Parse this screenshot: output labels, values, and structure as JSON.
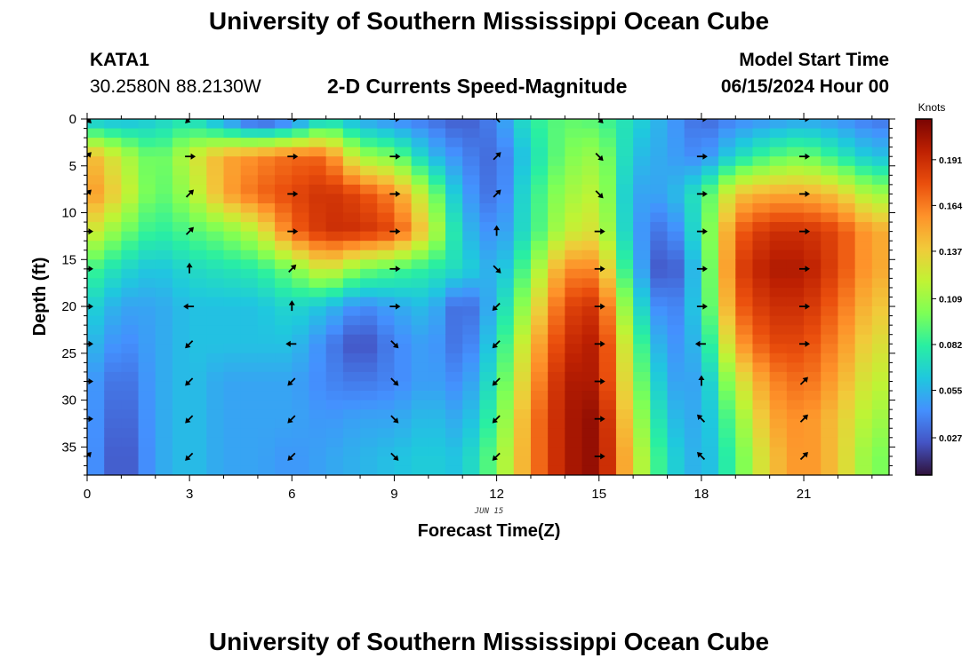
{
  "header": {
    "title": "University of Southern Mississippi Ocean Cube",
    "station_id": "KATA1",
    "station_coords": "30.2580N  88.2130W",
    "plot_title": "2-D Currents Speed-Magnitude",
    "model_start_label": "Model Start Time",
    "model_start_value": "06/15/2024 Hour 00"
  },
  "footer": {
    "title": "University of Southern Mississippi Ocean Cube"
  },
  "chart_data": {
    "type": "heatmap",
    "title": "2-D Currents Speed-Magnitude",
    "xlabel": "Forecast Time(Z)",
    "ylabel": "Depth (ft)",
    "x_date_label": "JUN 15",
    "xlim": [
      0,
      23.5
    ],
    "ylim": [
      0,
      38
    ],
    "y_inverted": true,
    "x_ticks": [
      0,
      3,
      6,
      9,
      12,
      15,
      18,
      21
    ],
    "y_ticks": [
      0,
      5,
      10,
      15,
      20,
      25,
      30,
      35
    ],
    "colorbar": {
      "label": "Knots",
      "ticks": [
        0.027,
        0.055,
        0.082,
        0.109,
        0.137,
        0.164,
        0.191
      ],
      "range": [
        0.005,
        0.215
      ],
      "colormap": [
        "#30123b",
        "#4454c4",
        "#4490fe",
        "#1fc8de",
        "#29efa2",
        "#7dff56",
        "#c1f334",
        "#f1ca3a",
        "#fe922a",
        "#ea4f0d",
        "#be2102",
        "#7a0403"
      ]
    },
    "grid": false,
    "legend": "right colorbar",
    "times": [
      0,
      1,
      2,
      3,
      4,
      5,
      6,
      7,
      8,
      9,
      10,
      11,
      12,
      13,
      14,
      15,
      16,
      17,
      18,
      19,
      20,
      21,
      22,
      23
    ],
    "depths": [
      0,
      4,
      8,
      12,
      16,
      20,
      24,
      28,
      32,
      36
    ],
    "speed": [
      [
        0.06,
        0.055,
        0.065,
        0.075,
        0.045,
        0.015,
        0.03,
        0.07,
        0.05,
        0.04,
        0.035,
        0.025,
        0.04,
        0.08,
        0.095,
        0.09,
        0.07,
        0.05,
        0.03,
        0.04,
        0.045,
        0.05,
        0.045,
        0.035
      ],
      [
        0.15,
        0.12,
        0.09,
        0.12,
        0.15,
        0.16,
        0.17,
        0.17,
        0.11,
        0.1,
        0.06,
        0.04,
        0.03,
        0.07,
        0.1,
        0.11,
        0.06,
        0.05,
        0.04,
        0.07,
        0.09,
        0.1,
        0.08,
        0.06
      ],
      [
        0.16,
        0.13,
        0.09,
        0.11,
        0.15,
        0.17,
        0.18,
        0.19,
        0.18,
        0.16,
        0.11,
        0.05,
        0.03,
        0.08,
        0.11,
        0.12,
        0.05,
        0.05,
        0.08,
        0.14,
        0.15,
        0.15,
        0.14,
        0.11
      ],
      [
        0.13,
        0.1,
        0.08,
        0.09,
        0.1,
        0.12,
        0.17,
        0.19,
        0.19,
        0.18,
        0.13,
        0.06,
        0.04,
        0.08,
        0.12,
        0.13,
        0.05,
        0.03,
        0.08,
        0.17,
        0.19,
        0.19,
        0.18,
        0.15
      ],
      [
        0.09,
        0.07,
        0.06,
        0.07,
        0.075,
        0.08,
        0.1,
        0.13,
        0.1,
        0.09,
        0.08,
        0.07,
        0.05,
        0.1,
        0.16,
        0.16,
        0.06,
        0.015,
        0.07,
        0.18,
        0.2,
        0.2,
        0.18,
        0.15
      ],
      [
        0.07,
        0.05,
        0.05,
        0.06,
        0.06,
        0.06,
        0.07,
        0.06,
        0.04,
        0.05,
        0.06,
        0.025,
        0.06,
        0.12,
        0.18,
        0.19,
        0.08,
        0.03,
        0.07,
        0.17,
        0.19,
        0.19,
        0.17,
        0.14
      ],
      [
        0.06,
        0.04,
        0.05,
        0.06,
        0.06,
        0.06,
        0.06,
        0.04,
        0.02,
        0.04,
        0.05,
        0.03,
        0.07,
        0.14,
        0.19,
        0.2,
        0.1,
        0.04,
        0.06,
        0.15,
        0.18,
        0.18,
        0.16,
        0.13
      ],
      [
        0.05,
        0.03,
        0.05,
        0.06,
        0.05,
        0.05,
        0.05,
        0.04,
        0.035,
        0.04,
        0.05,
        0.04,
        0.08,
        0.15,
        0.2,
        0.2,
        0.11,
        0.05,
        0.05,
        0.12,
        0.16,
        0.17,
        0.15,
        0.12
      ],
      [
        0.05,
        0.025,
        0.05,
        0.06,
        0.05,
        0.05,
        0.05,
        0.045,
        0.05,
        0.05,
        0.06,
        0.05,
        0.09,
        0.16,
        0.2,
        0.21,
        0.12,
        0.06,
        0.05,
        0.1,
        0.15,
        0.16,
        0.14,
        0.11
      ],
      [
        0.05,
        0.02,
        0.05,
        0.06,
        0.05,
        0.05,
        0.045,
        0.05,
        0.055,
        0.06,
        0.065,
        0.06,
        0.1,
        0.16,
        0.2,
        0.21,
        0.13,
        0.07,
        0.05,
        0.09,
        0.14,
        0.16,
        0.14,
        0.1
      ]
    ],
    "arrows": {
      "times": [
        0,
        3,
        6,
        9,
        12,
        15,
        18,
        21
      ],
      "depths": [
        0,
        4,
        8,
        12,
        16,
        20,
        24,
        28,
        32,
        36
      ],
      "direction_deg": [
        [
          135,
          225,
          90,
          90,
          315,
          135,
          90,
          90
        ],
        [
          45,
          90,
          90,
          90,
          45,
          135,
          90,
          90
        ],
        [
          45,
          45,
          90,
          90,
          45,
          135,
          90,
          90
        ],
        [
          90,
          45,
          90,
          90,
          0,
          90,
          90,
          90
        ],
        [
          90,
          0,
          45,
          90,
          135,
          90,
          90,
          90
        ],
        [
          90,
          270,
          0,
          90,
          225,
          90,
          90,
          90
        ],
        [
          90,
          225,
          270,
          135,
          225,
          90,
          270,
          90
        ],
        [
          90,
          225,
          225,
          135,
          225,
          90,
          0,
          45
        ],
        [
          90,
          225,
          225,
          135,
          225,
          90,
          315,
          45
        ],
        [
          45,
          225,
          225,
          135,
          225,
          90,
          315,
          45
        ]
      ]
    }
  }
}
